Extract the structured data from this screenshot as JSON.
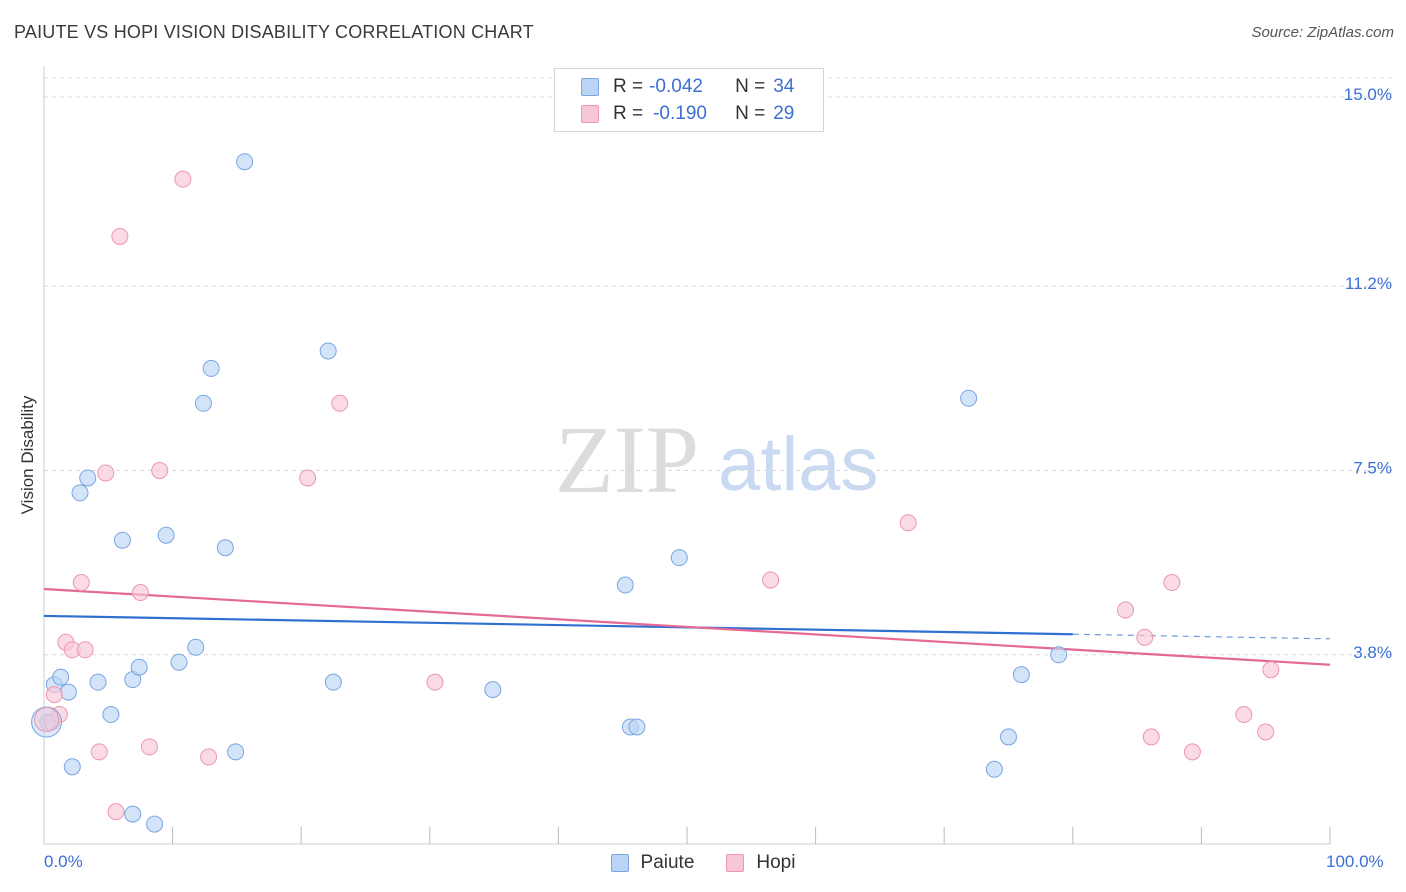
{
  "header": {
    "title": "PAIUTE VS HOPI VISION DISABILITY CORRELATION CHART",
    "source": "Source: ZipAtlas.com"
  },
  "watermark": {
    "zip": "ZIP",
    "atlas": "atlas"
  },
  "legend": {
    "rows": [
      {
        "r_label": "R =",
        "r_value": "-0.042",
        "n_label": "N =",
        "n_value": "34"
      },
      {
        "r_label": "R =",
        "r_value": "-0.190",
        "n_label": "N =",
        "n_value": "29"
      }
    ]
  },
  "colors": {
    "paiute_fill": "#bcd4f5",
    "paiute_stroke": "#7aa6e3",
    "paiute_line": "#2f6fd1",
    "hopi_fill": "#f8c7d6",
    "hopi_stroke": "#ec96b2",
    "hopi_line": "#e46a95",
    "tick_label": "#3b6fd6",
    "grid": "#d8d8d8"
  },
  "chart_data": {
    "type": "scatter",
    "title": "PAIUTE VS HOPI VISION DISABILITY CORRELATION CHART",
    "xlabel": "",
    "ylabel": "Vision Disability",
    "xlim": [
      0,
      100
    ],
    "ylim": [
      0,
      15.5
    ],
    "x_tick_labels": [
      "0.0%",
      "100.0%"
    ],
    "y_ticks": [
      3.8,
      7.5,
      11.2,
      15.0
    ],
    "y_tick_labels": [
      "3.8%",
      "7.5%",
      "11.2%",
      "15.0%"
    ],
    "legend_placement": "top-center",
    "series": [
      {
        "name": "Paiute",
        "r": -0.042,
        "n": 34,
        "trend": {
          "x0": 0,
          "y0": 4.58,
          "x1": 100,
          "y1": 4.12,
          "solid_until_x": 80
        },
        "points": [
          [
            0.3,
            2.45
          ],
          [
            0.8,
            3.2
          ],
          [
            1.3,
            3.35
          ],
          [
            1.9,
            3.05
          ],
          [
            2.2,
            1.55
          ],
          [
            2.8,
            7.05
          ],
          [
            3.4,
            7.35
          ],
          [
            4.2,
            3.25
          ],
          [
            5.2,
            2.6
          ],
          [
            6.1,
            6.1
          ],
          [
            6.9,
            3.3
          ],
          [
            7.4,
            3.55
          ],
          [
            6.9,
            0.6
          ],
          [
            8.6,
            0.4
          ],
          [
            9.5,
            6.2
          ],
          [
            10.5,
            3.65
          ],
          [
            11.8,
            3.95
          ],
          [
            12.4,
            8.85
          ],
          [
            13.0,
            9.55
          ],
          [
            14.1,
            5.95
          ],
          [
            14.9,
            1.85
          ],
          [
            15.6,
            13.7
          ],
          [
            22.5,
            3.25
          ],
          [
            22.1,
            9.9
          ],
          [
            34.9,
            3.1
          ],
          [
            45.2,
            5.2
          ],
          [
            45.6,
            2.35
          ],
          [
            46.1,
            2.35
          ],
          [
            49.4,
            5.75
          ],
          [
            71.9,
            8.95
          ],
          [
            75.0,
            2.15
          ],
          [
            76.0,
            3.4
          ],
          [
            73.9,
            1.5
          ],
          [
            78.9,
            3.8
          ]
        ]
      },
      {
        "name": "Hopi",
        "r": -0.19,
        "n": 29,
        "trend": {
          "x0": 0,
          "y0": 5.12,
          "x1": 100,
          "y1": 3.6
        },
        "points": [
          [
            0.6,
            2.45
          ],
          [
            0.8,
            3.0
          ],
          [
            1.2,
            2.6
          ],
          [
            1.7,
            4.05
          ],
          [
            2.2,
            3.9
          ],
          [
            2.9,
            5.25
          ],
          [
            3.2,
            3.9
          ],
          [
            4.3,
            1.85
          ],
          [
            4.8,
            7.45
          ],
          [
            5.6,
            0.65
          ],
          [
            5.9,
            12.2
          ],
          [
            7.5,
            5.05
          ],
          [
            8.2,
            1.95
          ],
          [
            9.0,
            7.5
          ],
          [
            10.8,
            13.35
          ],
          [
            12.8,
            1.75
          ],
          [
            20.5,
            7.35
          ],
          [
            23.0,
            8.85
          ],
          [
            30.4,
            3.25
          ],
          [
            67.2,
            6.45
          ],
          [
            56.5,
            5.3
          ],
          [
            84.1,
            4.7
          ],
          [
            86.1,
            2.15
          ],
          [
            85.6,
            4.15
          ],
          [
            87.7,
            5.25
          ],
          [
            89.3,
            1.85
          ],
          [
            93.3,
            2.6
          ],
          [
            95.0,
            2.25
          ],
          [
            95.4,
            3.5
          ]
        ]
      }
    ]
  },
  "bottom_legend": {
    "items": [
      "Paiute",
      "Hopi"
    ]
  }
}
